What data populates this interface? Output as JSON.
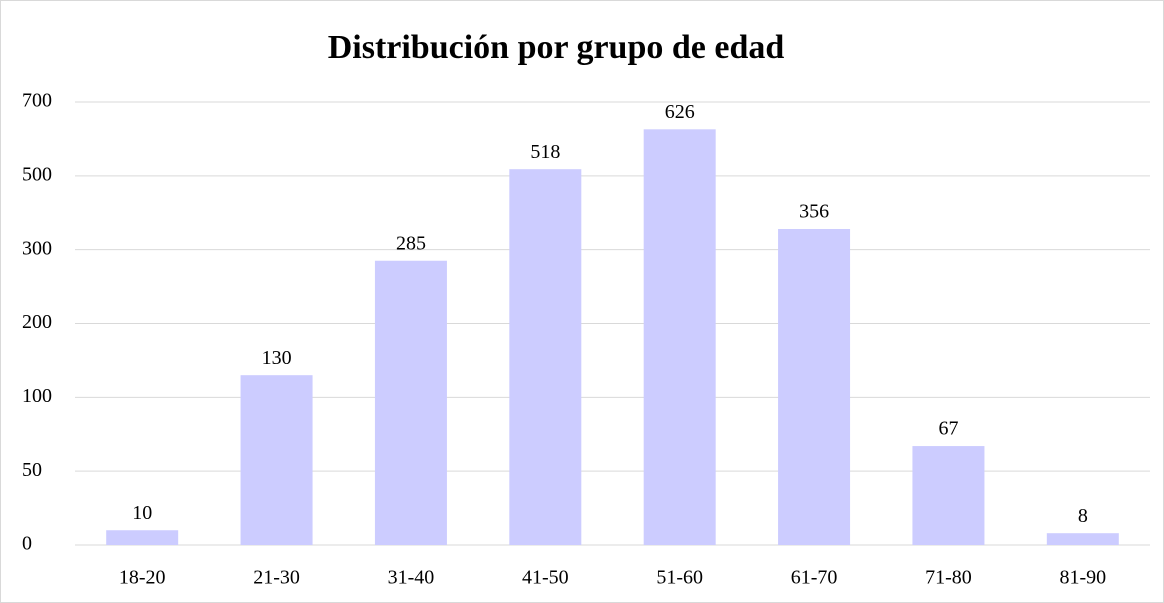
{
  "chart_data": {
    "type": "bar",
    "title": "Distribución por grupo de edad",
    "categories": [
      "18-20",
      "21-30",
      "31-40",
      "41-50",
      "51-60",
      "61-70",
      "71-80",
      "81-90"
    ],
    "values": [
      10,
      130,
      285,
      518,
      626,
      356,
      67,
      8
    ],
    "color": "#ccccff",
    "ylim": [
      0,
      700
    ],
    "yticks": [
      0,
      50,
      100,
      200,
      300,
      500,
      700
    ],
    "grid": true
  }
}
